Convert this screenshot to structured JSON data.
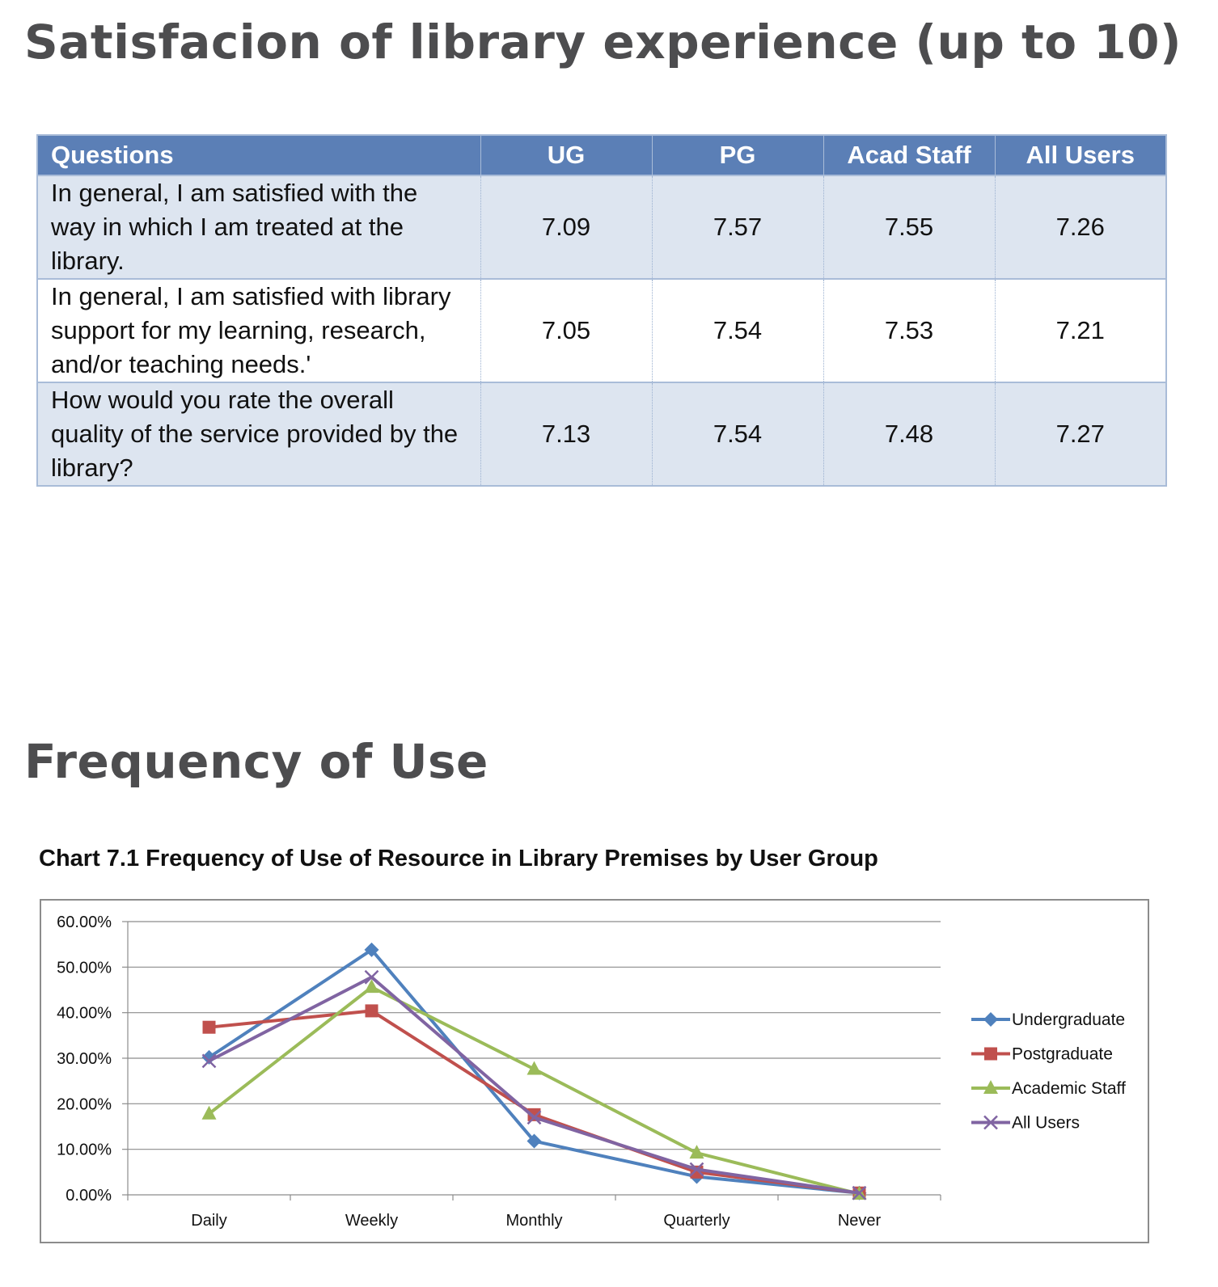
{
  "section1": {
    "title": "Satisfacion of library experience (up to 10)",
    "table": {
      "headers": [
        "Questions",
        "UG",
        "PG",
        "Acad Staff",
        "All Users"
      ],
      "rows": [
        {
          "question": "In general, I am satisfied with the way in which I am treated at the library.",
          "ug": "7.09",
          "pg": "7.57",
          "acad": "7.55",
          "all": "7.26"
        },
        {
          "question": "In general, I am satisfied with library support for my learning, research, and/or teaching needs.'",
          "ug": "7.05",
          "pg": "7.54",
          "acad": "7.53",
          "all": "7.21"
        },
        {
          "question": "How would you rate the overall quality of the service provided by the library?",
          "ug": "7.13",
          "pg": "7.54",
          "acad": "7.48",
          "all": "7.27"
        }
      ]
    }
  },
  "section2": {
    "title": "Frequency of Use",
    "chart_caption": "Chart 7.1 Frequency of Use of Resource in Library Premises by User Group"
  },
  "chart_data": {
    "type": "line",
    "categories": [
      "Daily",
      "Weekly",
      "Monthly",
      "Quarterly",
      "Never"
    ],
    "ylim": [
      0,
      60
    ],
    "yticks": [
      "0.00%",
      "10.00%",
      "20.00%",
      "30.00%",
      "40.00%",
      "50.00%",
      "60.00%"
    ],
    "grid": true,
    "legend_position": "right",
    "series": [
      {
        "name": "Undergraduate",
        "color": "#4f81bd",
        "marker": "diamond",
        "values": [
          30.2,
          53.8,
          11.8,
          4.0,
          0.4
        ]
      },
      {
        "name": "Postgraduate",
        "color": "#c0504d",
        "marker": "square",
        "values": [
          36.8,
          40.4,
          17.6,
          5.0,
          0.4
        ]
      },
      {
        "name": "Academic Staff",
        "color": "#9bbb59",
        "marker": "triangle",
        "values": [
          17.8,
          45.6,
          27.6,
          9.2,
          0.2
        ]
      },
      {
        "name": "All Users",
        "color": "#8064a2",
        "marker": "x",
        "values": [
          29.4,
          47.8,
          17.0,
          5.6,
          0.4
        ]
      }
    ]
  }
}
